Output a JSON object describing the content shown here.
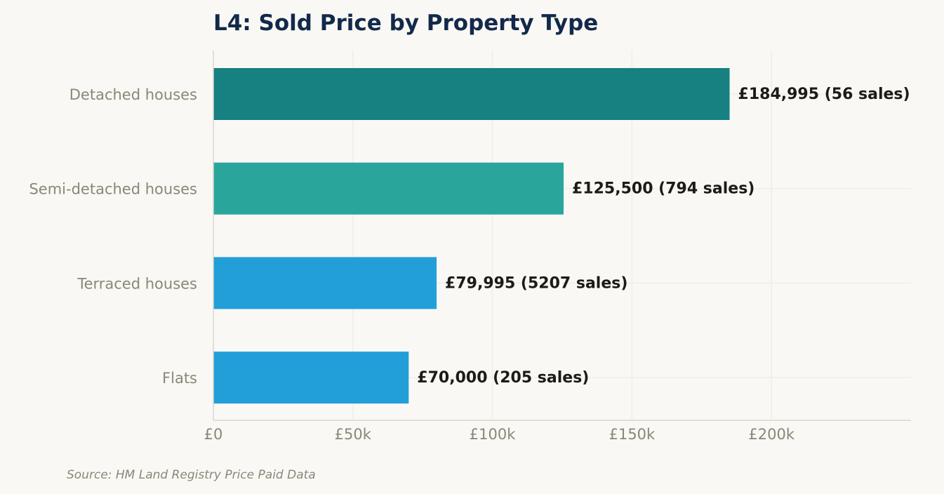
{
  "chart_data": {
    "type": "bar",
    "orientation": "horizontal",
    "title": "L4: Sold Price by Property Type",
    "categories": [
      "Detached houses",
      "Semi-detached houses",
      "Terraced houses",
      "Flats"
    ],
    "values": [
      184995,
      125500,
      79995,
      70000
    ],
    "sales": [
      56,
      794,
      5207,
      205
    ],
    "data_labels": [
      "£184,995  (56 sales)",
      "£125,500  (794 sales)",
      "£79,995  (5207 sales)",
      "£70,000  (205 sales)"
    ],
    "bar_colors": [
      "#178080",
      "#2aa59c",
      "#229fd9",
      "#229fd9"
    ],
    "xlim": [
      0,
      250000
    ],
    "xticks": [
      0,
      50000,
      100000,
      150000,
      200000
    ],
    "xtick_labels": [
      "£0",
      "£50k",
      "£100k",
      "£150k",
      "£200k"
    ],
    "xlabel": "",
    "ylabel": "",
    "grid": true,
    "legend": false
  },
  "source_note": "Source: HM Land Registry Price Paid Data",
  "colors": {
    "background": "#f9f8f4",
    "title": "#13294b",
    "axis_text": "#8a8778",
    "label_text": "#1c1b17"
  }
}
